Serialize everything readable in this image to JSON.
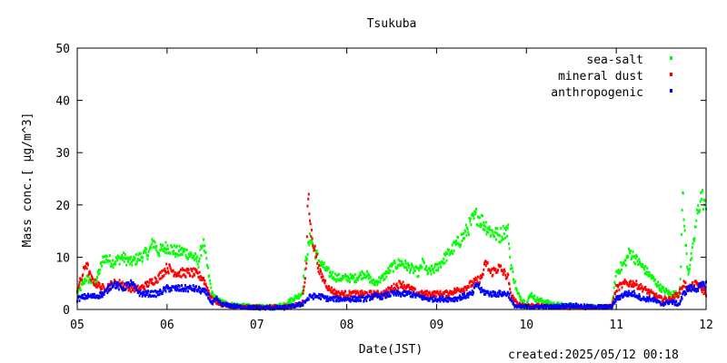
{
  "chart_data": {
    "type": "scatter",
    "title": "Tsukuba",
    "xlabel": "Date(JST)",
    "ylabel": "Mass conc.[ μg/m^3]",
    "x_ticks": [
      "05",
      "06",
      "07",
      "08",
      "09",
      "10",
      "11",
      "12"
    ],
    "xlim": [
      "05",
      "12"
    ],
    "ylim": [
      0,
      50
    ],
    "y_ticks": [
      0,
      10,
      20,
      30,
      40,
      50
    ],
    "legend_position": "top-right",
    "grid": false,
    "series": [
      {
        "name": "sea-salt",
        "color": "#00ff00",
        "points": [
          [
            5.0,
            3
          ],
          [
            5.1,
            6
          ],
          [
            5.2,
            5
          ],
          [
            5.3,
            10
          ],
          [
            5.4,
            9
          ],
          [
            5.5,
            10
          ],
          [
            5.6,
            9
          ],
          [
            5.7,
            10
          ],
          [
            5.8,
            11
          ],
          [
            5.85,
            13
          ],
          [
            5.9,
            11
          ],
          [
            6.0,
            12
          ],
          [
            6.1,
            11
          ],
          [
            6.2,
            11
          ],
          [
            6.3,
            10
          ],
          [
            6.35,
            9
          ],
          [
            6.4,
            13
          ],
          [
            6.45,
            8
          ],
          [
            6.5,
            3
          ],
          [
            6.55,
            2
          ],
          [
            6.6,
            1.5
          ],
          [
            6.7,
            1
          ],
          [
            6.8,
            0.8
          ],
          [
            7.0,
            0.5
          ],
          [
            7.2,
            0.5
          ],
          [
            7.3,
            1
          ],
          [
            7.4,
            2
          ],
          [
            7.5,
            3
          ],
          [
            7.55,
            10
          ],
          [
            7.6,
            14
          ],
          [
            7.65,
            11
          ],
          [
            7.7,
            9
          ],
          [
            7.8,
            7
          ],
          [
            7.9,
            6
          ],
          [
            8.0,
            6
          ],
          [
            8.1,
            6
          ],
          [
            8.2,
            7
          ],
          [
            8.3,
            5
          ],
          [
            8.4,
            6
          ],
          [
            8.5,
            8
          ],
          [
            8.6,
            9
          ],
          [
            8.7,
            8
          ],
          [
            8.8,
            7
          ],
          [
            8.85,
            9
          ],
          [
            8.9,
            7
          ],
          [
            9.0,
            8
          ],
          [
            9.1,
            10
          ],
          [
            9.2,
            12
          ],
          [
            9.3,
            14
          ],
          [
            9.4,
            17
          ],
          [
            9.45,
            18
          ],
          [
            9.5,
            17
          ],
          [
            9.6,
            15
          ],
          [
            9.7,
            14
          ],
          [
            9.75,
            15
          ],
          [
            9.8,
            15
          ],
          [
            9.82,
            9
          ],
          [
            9.9,
            3
          ],
          [
            10.0,
            1
          ],
          [
            10.05,
            3
          ],
          [
            10.1,
            2
          ],
          [
            10.3,
            1
          ],
          [
            10.6,
            0.5
          ],
          [
            10.95,
            0.5
          ],
          [
            11.0,
            7
          ],
          [
            11.1,
            9
          ],
          [
            11.15,
            11
          ],
          [
            11.2,
            10
          ],
          [
            11.3,
            8
          ],
          [
            11.4,
            6
          ],
          [
            11.5,
            4
          ],
          [
            11.6,
            3
          ],
          [
            11.7,
            3
          ],
          [
            11.72,
            8
          ],
          [
            11.74,
            24
          ],
          [
            11.76,
            15
          ],
          [
            11.8,
            7
          ],
          [
            11.85,
            11
          ],
          [
            11.9,
            18
          ],
          [
            11.95,
            22
          ],
          [
            12.0,
            19
          ]
        ]
      },
      {
        "name": "mineral dust",
        "color": "#ff0000",
        "points": [
          [
            5.0,
            4
          ],
          [
            5.05,
            6
          ],
          [
            5.1,
            9
          ],
          [
            5.15,
            6
          ],
          [
            5.2,
            5
          ],
          [
            5.3,
            4
          ],
          [
            5.4,
            5
          ],
          [
            5.5,
            5
          ],
          [
            5.6,
            4
          ],
          [
            5.7,
            4
          ],
          [
            5.8,
            5
          ],
          [
            5.9,
            6
          ],
          [
            6.0,
            8
          ],
          [
            6.1,
            7
          ],
          [
            6.2,
            7
          ],
          [
            6.3,
            7
          ],
          [
            6.4,
            6
          ],
          [
            6.45,
            4
          ],
          [
            6.5,
            2
          ],
          [
            6.6,
            1
          ],
          [
            6.8,
            0.5
          ],
          [
            7.0,
            0.4
          ],
          [
            7.3,
            0.5
          ],
          [
            7.5,
            1
          ],
          [
            7.55,
            8
          ],
          [
            7.57,
            22
          ],
          [
            7.6,
            15
          ],
          [
            7.7,
            7
          ],
          [
            7.8,
            4
          ],
          [
            7.9,
            3
          ],
          [
            8.0,
            3
          ],
          [
            8.1,
            3
          ],
          [
            8.2,
            3
          ],
          [
            8.3,
            3
          ],
          [
            8.4,
            3
          ],
          [
            8.5,
            4
          ],
          [
            8.6,
            5
          ],
          [
            8.7,
            4
          ],
          [
            8.8,
            3
          ],
          [
            8.9,
            3
          ],
          [
            9.0,
            3
          ],
          [
            9.1,
            3
          ],
          [
            9.2,
            3.5
          ],
          [
            9.3,
            4
          ],
          [
            9.4,
            5
          ],
          [
            9.5,
            6
          ],
          [
            9.55,
            9
          ],
          [
            9.6,
            7
          ],
          [
            9.7,
            8
          ],
          [
            9.8,
            6
          ],
          [
            9.82,
            3
          ],
          [
            9.9,
            1
          ],
          [
            10.0,
            0.8
          ],
          [
            10.3,
            0.5
          ],
          [
            10.6,
            0.4
          ],
          [
            10.95,
            0.5
          ],
          [
            11.0,
            4
          ],
          [
            11.1,
            5
          ],
          [
            11.2,
            5
          ],
          [
            11.3,
            4
          ],
          [
            11.4,
            3
          ],
          [
            11.5,
            2
          ],
          [
            11.6,
            2
          ],
          [
            11.7,
            3
          ],
          [
            11.75,
            5
          ],
          [
            11.8,
            4
          ],
          [
            11.9,
            5
          ],
          [
            12.0,
            3
          ]
        ]
      },
      {
        "name": "anthropogenic",
        "color": "#0000ff",
        "points": [
          [
            5.0,
            2
          ],
          [
            5.1,
            2.5
          ],
          [
            5.2,
            2.5
          ],
          [
            5.3,
            3
          ],
          [
            5.4,
            5
          ],
          [
            5.5,
            4
          ],
          [
            5.6,
            5
          ],
          [
            5.7,
            3
          ],
          [
            5.8,
            3
          ],
          [
            5.9,
            3
          ],
          [
            6.0,
            4
          ],
          [
            6.1,
            4
          ],
          [
            6.2,
            4
          ],
          [
            6.3,
            4
          ],
          [
            6.4,
            3.5
          ],
          [
            6.45,
            3
          ],
          [
            6.5,
            1
          ],
          [
            6.55,
            2
          ],
          [
            6.6,
            1
          ],
          [
            6.8,
            0.5
          ],
          [
            7.0,
            0.3
          ],
          [
            7.3,
            0.3
          ],
          [
            7.5,
            1
          ],
          [
            7.6,
            2.5
          ],
          [
            7.7,
            2.5
          ],
          [
            7.8,
            2
          ],
          [
            7.9,
            2
          ],
          [
            8.0,
            2
          ],
          [
            8.1,
            2
          ],
          [
            8.2,
            2
          ],
          [
            8.3,
            2.5
          ],
          [
            8.4,
            2.5
          ],
          [
            8.5,
            3
          ],
          [
            8.6,
            3
          ],
          [
            8.7,
            3
          ],
          [
            8.8,
            2.5
          ],
          [
            8.9,
            2
          ],
          [
            9.0,
            2
          ],
          [
            9.1,
            2
          ],
          [
            9.2,
            2
          ],
          [
            9.3,
            2.5
          ],
          [
            9.4,
            3
          ],
          [
            9.45,
            5
          ],
          [
            9.5,
            3.5
          ],
          [
            9.6,
            3
          ],
          [
            9.7,
            3
          ],
          [
            9.8,
            3
          ],
          [
            9.85,
            1
          ],
          [
            9.9,
            0.5
          ],
          [
            10.0,
            0.5
          ],
          [
            10.3,
            0.5
          ],
          [
            10.5,
            0.8
          ],
          [
            10.7,
            0.5
          ],
          [
            10.95,
            0.5
          ],
          [
            11.0,
            2
          ],
          [
            11.1,
            3
          ],
          [
            11.2,
            3
          ],
          [
            11.3,
            2
          ],
          [
            11.4,
            2
          ],
          [
            11.5,
            1
          ],
          [
            11.6,
            1.5
          ],
          [
            11.7,
            1
          ],
          [
            11.75,
            3
          ],
          [
            11.8,
            4
          ],
          [
            11.9,
            4
          ],
          [
            12.0,
            5
          ]
        ]
      }
    ]
  },
  "footer": {
    "created": "created:2025/05/12 00:18"
  }
}
